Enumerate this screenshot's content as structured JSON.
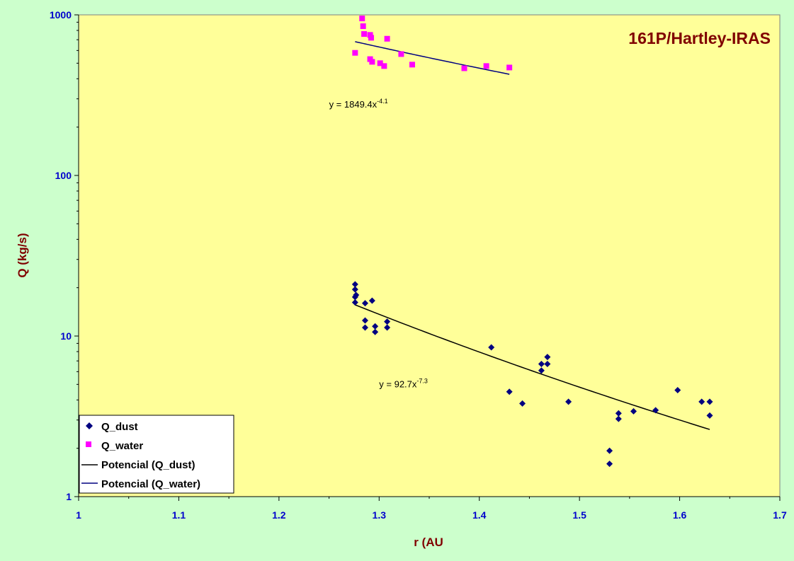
{
  "chart_data": {
    "type": "scatter",
    "title": "161P/Hartley-IRAS",
    "xlabel": "r (AU",
    "ylabel": "Q (kg/s)",
    "xlim": [
      1,
      1.7
    ],
    "ylim": [
      1,
      1000
    ],
    "y_scale": "log",
    "x_ticks": [
      "1",
      "1.1",
      "1.2",
      "1.3",
      "1.4",
      "1.5",
      "1.6",
      "1.7"
    ],
    "y_ticks": [
      "1",
      "10",
      "100",
      "1000"
    ],
    "grid": false,
    "legend_position": "bottom-left",
    "background_color": "#ffff99",
    "outer_color": "#ccffcc",
    "series": [
      {
        "name": "Q_dust",
        "marker": "diamond",
        "color": "#000080",
        "points": [
          [
            1.276,
            21.0
          ],
          [
            1.276,
            19.5
          ],
          [
            1.277,
            18.0
          ],
          [
            1.276,
            17.5
          ],
          [
            1.276,
            16.2
          ],
          [
            1.286,
            16.0
          ],
          [
            1.293,
            16.6
          ],
          [
            1.286,
            12.5
          ],
          [
            1.286,
            11.3
          ],
          [
            1.296,
            11.5
          ],
          [
            1.296,
            10.6
          ],
          [
            1.308,
            12.3
          ],
          [
            1.308,
            11.3
          ],
          [
            1.412,
            8.5
          ],
          [
            1.462,
            6.7
          ],
          [
            1.462,
            6.1
          ],
          [
            1.468,
            7.4
          ],
          [
            1.468,
            6.7
          ],
          [
            1.43,
            4.5
          ],
          [
            1.443,
            3.8
          ],
          [
            1.489,
            3.9
          ],
          [
            1.53,
            1.93
          ],
          [
            1.53,
            1.6
          ],
          [
            1.539,
            3.3
          ],
          [
            1.539,
            3.05
          ],
          [
            1.554,
            3.4
          ],
          [
            1.576,
            3.45
          ],
          [
            1.598,
            4.6
          ],
          [
            1.622,
            3.9
          ],
          [
            1.63,
            3.9
          ],
          [
            1.63,
            3.2
          ]
        ]
      },
      {
        "name": "Q_water",
        "marker": "square",
        "color": "#ff00ff",
        "points": [
          [
            1.276,
            580
          ],
          [
            1.283,
            950
          ],
          [
            1.284,
            850
          ],
          [
            1.285,
            760
          ],
          [
            1.291,
            750
          ],
          [
            1.292,
            720
          ],
          [
            1.308,
            710
          ],
          [
            1.291,
            530
          ],
          [
            1.293,
            510
          ],
          [
            1.301,
            500
          ],
          [
            1.305,
            480
          ],
          [
            1.322,
            570
          ],
          [
            1.333,
            490
          ],
          [
            1.385,
            465
          ],
          [
            1.407,
            480
          ],
          [
            1.43,
            470
          ]
        ]
      }
    ],
    "trendlines": [
      {
        "name": "Potencial (Q_dust)",
        "color": "#000000",
        "a": 92.7,
        "b": -7.3,
        "x_range": [
          1.276,
          1.63
        ],
        "equation_base": "y = 92.7x",
        "equation_exp": "-7.3",
        "label_at": [
          1.3,
          4.8
        ]
      },
      {
        "name": "Potencial (Q_water)",
        "color": "#000080",
        "a": 1849.4,
        "b": -4.1,
        "x_range": [
          1.276,
          1.43
        ],
        "equation_base": "y = 1849.4x",
        "equation_exp": "-4.1",
        "label_at": [
          1.25,
          265
        ]
      }
    ]
  }
}
